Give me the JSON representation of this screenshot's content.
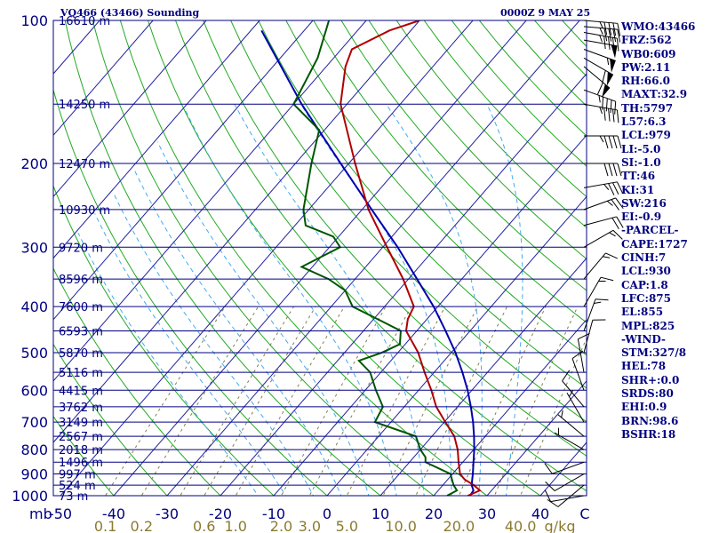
{
  "header": {
    "station": "VQ466 (43466) Sounding",
    "time": "0000Z  9 MAY 25"
  },
  "colors": {
    "frame": "#000080",
    "isobar": "#000080",
    "isotherm": "#2020a0",
    "dry_adiabat": "#22aa22",
    "moist_adiabat": "#44aaee",
    "mixing_ratio": "#808050",
    "temperature": "#b00000",
    "dewpoint": "#005500",
    "parcel": "#0000b0",
    "wind": "#000000",
    "mr_labels": "#8a7a30"
  },
  "indices": [
    "WMO:43466",
    "FRZ:562",
    "WB0:609",
    "PW:2.11",
    "RH:66.0",
    "MAXT:32.9",
    "TH:5797",
    "L57:6.3",
    "LCL:979",
    "LI:-5.0",
    "SI:-1.0",
    "TT:46",
    "KI:31",
    "SW:216",
    "EI:-0.9",
    "-PARCEL-",
    "CAPE:1727",
    "CINH:7",
    "LCL:930",
    "CAP:1.8",
    "LFC:875",
    "EL:855",
    "MPL:825",
    "-WIND-",
    "STM:327/8",
    "HEL:78",
    "SHR+:0.0",
    "SRDS:80",
    "EHI:0.9",
    "BRN:98.6",
    "BSHR:18"
  ],
  "chart_data": {
    "type": "skew-t log-p",
    "title": "VQ466 (43466) Sounding",
    "xlabel": "C",
    "ylabel": "mb",
    "pressure_range": [
      1000,
      100
    ],
    "temperature_range": [
      -50,
      50
    ],
    "pressure_ticks": [
      100,
      200,
      300,
      400,
      500,
      600,
      700,
      800,
      900,
      1000
    ],
    "temperature_ticks": [
      {
        "value": -50,
        "label": "-50"
      },
      {
        "value": -40,
        "label": "-40"
      },
      {
        "value": -30,
        "label": "-30"
      },
      {
        "value": -20,
        "label": "-20"
      },
      {
        "value": -10,
        "label": "-10"
      },
      {
        "value": 0,
        "label": "0"
      },
      {
        "value": 10,
        "label": "10"
      },
      {
        "value": 20,
        "label": "20"
      },
      {
        "value": 30,
        "label": "30"
      },
      {
        "value": 40,
        "label": "40"
      }
    ],
    "mixing_ratio_labels": [
      {
        "value": 0.1,
        "label": "0.1"
      },
      {
        "value": 0.2,
        "label": "0.2"
      },
      {
        "value": 0.6,
        "label": "0.6"
      },
      {
        "value": 1.0,
        "label": "1.0"
      },
      {
        "value": 2.0,
        "label": "2.0"
      },
      {
        "value": 3.0,
        "label": "3.0"
      },
      {
        "value": 5.0,
        "label": "5.0"
      },
      {
        "value": 10.0,
        "label": "10.0"
      },
      {
        "value": 20.0,
        "label": "20.0"
      },
      {
        "value": 40.0,
        "label": "40.0"
      }
    ],
    "mixing_ratio_unit": "g/kg",
    "height_labels": [
      {
        "pressure": 100,
        "label": "16610 m"
      },
      {
        "pressure": 150,
        "label": "14250 m"
      },
      {
        "pressure": 200,
        "label": "12470 m"
      },
      {
        "pressure": 250,
        "label": "10930 m"
      },
      {
        "pressure": 300,
        "label": "9720 m"
      },
      {
        "pressure": 350,
        "label": "8596 m"
      },
      {
        "pressure": 400,
        "label": "7600 m"
      },
      {
        "pressure": 450,
        "label": "6593 m"
      },
      {
        "pressure": 500,
        "label": "5870 m"
      },
      {
        "pressure": 550,
        "label": "5116 m"
      },
      {
        "pressure": 600,
        "label": "4415 m"
      },
      {
        "pressure": 650,
        "label": "3762 m"
      },
      {
        "pressure": 700,
        "label": "3149 m"
      },
      {
        "pressure": 750,
        "label": "2567 m"
      },
      {
        "pressure": 800,
        "label": "2018 m"
      },
      {
        "pressure": 850,
        "label": "1496 m"
      },
      {
        "pressure": 900,
        "label": "997 m"
      },
      {
        "pressure": 950,
        "label": "524 m"
      },
      {
        "pressure": 1000,
        "label": "73 m"
      }
    ],
    "temperature_profile": [
      [
        1000,
        26.4
      ],
      [
        975,
        27.8
      ],
      [
        950,
        25.8
      ],
      [
        925,
        23.2
      ],
      [
        900,
        21.4
      ],
      [
        850,
        19.2
      ],
      [
        800,
        17.0
      ],
      [
        750,
        14.2
      ],
      [
        700,
        10.2
      ],
      [
        650,
        6.0
      ],
      [
        600,
        2.4
      ],
      [
        550,
        -1.8
      ],
      [
        500,
        -6.2
      ],
      [
        450,
        -12.0
      ],
      [
        425,
        -13.6
      ],
      [
        400,
        -14.5
      ],
      [
        350,
        -21.0
      ],
      [
        300,
        -29.2
      ],
      [
        250,
        -38.8
      ],
      [
        200,
        -48.8
      ],
      [
        150,
        -61.2
      ],
      [
        125,
        -66.4
      ],
      [
        115,
        -68.0
      ],
      [
        105,
        -64.0
      ],
      [
        100,
        -60.0
      ]
    ],
    "dewpoint_profile": [
      [
        1000,
        22.5
      ],
      [
        975,
        23.5
      ],
      [
        950,
        22.0
      ],
      [
        900,
        19.6
      ],
      [
        850,
        13.0
      ],
      [
        830,
        12.2
      ],
      [
        800,
        10.0
      ],
      [
        750,
        7.0
      ],
      [
        700,
        -3.0
      ],
      [
        650,
        -4.0
      ],
      [
        600,
        -8.0
      ],
      [
        550,
        -12.0
      ],
      [
        520,
        -16.0
      ],
      [
        500,
        -13.0
      ],
      [
        480,
        -11.0
      ],
      [
        450,
        -13.0
      ],
      [
        430,
        -18.0
      ],
      [
        400,
        -26.0
      ],
      [
        370,
        -30.0
      ],
      [
        350,
        -35.0
      ],
      [
        330,
        -42.0
      ],
      [
        300,
        -38.0
      ],
      [
        285,
        -41.0
      ],
      [
        270,
        -48.0
      ],
      [
        250,
        -51.0
      ],
      [
        200,
        -57.0
      ],
      [
        170,
        -61.0
      ],
      [
        150,
        -70.0
      ],
      [
        120,
        -73.0
      ],
      [
        100,
        -77.0
      ]
    ],
    "parcel_profile": [
      [
        1000,
        26.8
      ],
      [
        975,
        26.6
      ],
      [
        950,
        25.4
      ],
      [
        925,
        24.6
      ],
      [
        900,
        23.8
      ],
      [
        850,
        22.0
      ],
      [
        800,
        20.1
      ],
      [
        750,
        17.9
      ],
      [
        700,
        15.4
      ],
      [
        650,
        12.5
      ],
      [
        600,
        9.2
      ],
      [
        550,
        5.3
      ],
      [
        500,
        0.8
      ],
      [
        450,
        -4.6
      ],
      [
        400,
        -10.8
      ],
      [
        350,
        -18.4
      ],
      [
        300,
        -27.2
      ],
      [
        250,
        -38.2
      ],
      [
        200,
        -51.5
      ],
      [
        150,
        -68.5
      ],
      [
        105,
        -88.0
      ]
    ],
    "wind_barbs": [
      {
        "pressure": 100,
        "direction": 95,
        "speed": 45
      },
      {
        "pressure": 103,
        "direction": 95,
        "speed": 45
      },
      {
        "pressure": 106,
        "direction": 100,
        "speed": 45
      },
      {
        "pressure": 110,
        "direction": 100,
        "speed": 50
      },
      {
        "pressure": 115,
        "direction": 110,
        "speed": 55
      },
      {
        "pressure": 120,
        "direction": 120,
        "speed": 60
      },
      {
        "pressure": 125,
        "direction": 130,
        "speed": 60
      },
      {
        "pressure": 140,
        "direction": 110,
        "speed": 45
      },
      {
        "pressure": 150,
        "direction": 100,
        "speed": 45
      },
      {
        "pressure": 175,
        "direction": 90,
        "speed": 45
      },
      {
        "pressure": 200,
        "direction": 90,
        "speed": 40
      },
      {
        "pressure": 225,
        "direction": 80,
        "speed": 35
      },
      {
        "pressure": 250,
        "direction": 70,
        "speed": 25
      },
      {
        "pressure": 270,
        "direction": 75,
        "speed": 20
      },
      {
        "pressure": 300,
        "direction": 60,
        "speed": 15
      },
      {
        "pressure": 350,
        "direction": 40,
        "speed": 15
      },
      {
        "pressure": 400,
        "direction": 30,
        "speed": 15
      },
      {
        "pressure": 450,
        "direction": 20,
        "speed": 15
      },
      {
        "pressure": 500,
        "direction": 15,
        "speed": 10
      },
      {
        "pressure": 550,
        "direction": 350,
        "speed": 10
      },
      {
        "pressure": 600,
        "direction": 340,
        "speed": 10
      },
      {
        "pressure": 650,
        "direction": 320,
        "speed": 10
      },
      {
        "pressure": 700,
        "direction": 330,
        "speed": 5
      },
      {
        "pressure": 750,
        "direction": 310,
        "speed": 5
      },
      {
        "pressure": 800,
        "direction": 300,
        "speed": 5
      },
      {
        "pressure": 850,
        "direction": 250,
        "speed": 10
      },
      {
        "pressure": 900,
        "direction": 240,
        "speed": 10
      },
      {
        "pressure": 950,
        "direction": 230,
        "speed": 10
      },
      {
        "pressure": 1000,
        "direction": 260,
        "speed": 10
      }
    ]
  }
}
